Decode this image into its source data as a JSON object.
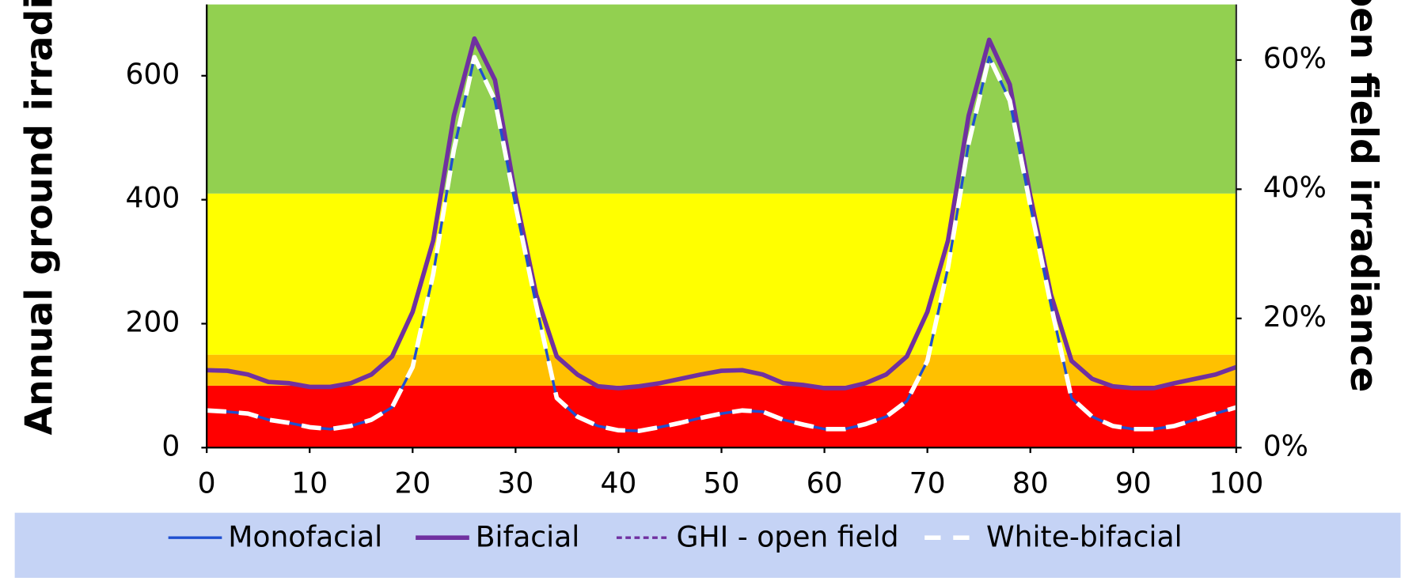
{
  "chart_data": {
    "type": "line",
    "y_label": "Annual ground irradiance",
    "y2_label": "open field irradiance",
    "x": [
      0,
      2,
      4,
      6,
      8,
      10,
      12,
      14,
      16,
      18,
      20,
      22,
      24,
      26,
      28,
      30,
      32,
      34,
      36,
      38,
      40,
      42,
      44,
      46,
      48,
      50,
      52,
      54,
      56,
      58,
      60,
      62,
      64,
      66,
      68,
      70,
      72,
      74,
      76,
      78,
      80,
      82,
      84,
      86,
      88,
      90,
      92,
      94,
      96,
      98,
      100
    ],
    "xlim": [
      0,
      100
    ],
    "xticks": [
      0,
      10,
      20,
      30,
      40,
      50,
      60,
      70,
      80,
      90,
      100
    ],
    "ylim": [
      0,
      715
    ],
    "yticks": [
      0,
      200,
      400,
      600
    ],
    "y2lim": [
      0,
      68.6
    ],
    "y2ticks": [
      {
        "value": 0,
        "label": "0%"
      },
      {
        "value": 20,
        "label": "20%"
      },
      {
        "value": 40,
        "label": "40%"
      },
      {
        "value": 60,
        "label": "60%"
      }
    ],
    "bands": [
      {
        "from": 0,
        "to": 100,
        "color": "#ff0000"
      },
      {
        "from": 100,
        "to": 150,
        "color": "#ffc000"
      },
      {
        "from": 150,
        "to": 410,
        "color": "#ffff00"
      },
      {
        "from": 410,
        "to": 715,
        "color": "#92d050"
      }
    ],
    "series": [
      {
        "name": "Monofacial",
        "color": "#1f4fd0",
        "values": [
          60,
          58,
          55,
          45,
          40,
          33,
          30,
          35,
          45,
          65,
          130,
          280,
          480,
          630,
          560,
          390,
          230,
          80,
          50,
          35,
          28,
          27,
          33,
          40,
          48,
          55,
          60,
          58,
          45,
          37,
          30,
          30,
          38,
          50,
          75,
          140,
          290,
          490,
          630,
          560,
          390,
          230,
          80,
          50,
          35,
          30,
          30,
          35,
          45,
          55,
          65
        ]
      },
      {
        "name": "Bifacial",
        "color": "#7030a0",
        "values": [
          125,
          124,
          118,
          106,
          104,
          98,
          98,
          104,
          118,
          147,
          219,
          334,
          535,
          660,
          593,
          406,
          247,
          147,
          118,
          99,
          96,
          99,
          104,
          111,
          118,
          124,
          125,
          118,
          104,
          101,
          96,
          96,
          104,
          118,
          147,
          219,
          334,
          535,
          658,
          586,
          406,
          247,
          140,
          111,
          99,
          96,
          96,
          104,
          111,
          118,
          130
        ]
      },
      {
        "name": "GHI - open field",
        "color": "#7030a0",
        "values": [
          null,
          null,
          null,
          null,
          null,
          null,
          null,
          null,
          null,
          null,
          null,
          null,
          null,
          null,
          null,
          null,
          null,
          null,
          null,
          null,
          null,
          null,
          null,
          null,
          null,
          null,
          null,
          null,
          null,
          null,
          null,
          null,
          null,
          null,
          null,
          null,
          null,
          null,
          null,
          null,
          null,
          null,
          null,
          null,
          null,
          null,
          null,
          null,
          null,
          null,
          null
        ]
      },
      {
        "name": "White-bifacial",
        "color": "#ffffff",
        "values": [
          60,
          58,
          55,
          45,
          40,
          33,
          30,
          35,
          45,
          65,
          130,
          280,
          480,
          630,
          560,
          390,
          230,
          80,
          50,
          35,
          28,
          27,
          33,
          40,
          48,
          55,
          60,
          58,
          45,
          37,
          30,
          30,
          38,
          50,
          75,
          140,
          290,
          490,
          630,
          560,
          390,
          230,
          80,
          50,
          35,
          30,
          30,
          35,
          45,
          55,
          65
        ]
      }
    ],
    "legend_position": "bottom"
  }
}
